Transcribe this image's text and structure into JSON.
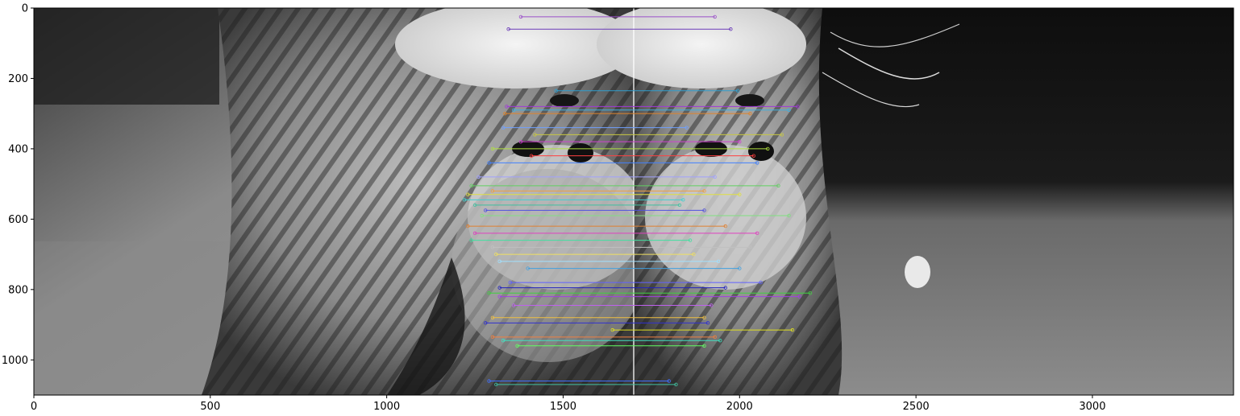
{
  "figure": {
    "description_key": "keypoint-matches",
    "image_extent": {
      "x": [
        0,
        3400
      ],
      "y": [
        0,
        1100
      ]
    },
    "seam_x": 1700,
    "x_ticks": [
      {
        "value": 0,
        "label": "0"
      },
      {
        "value": 500,
        "label": "500"
      },
      {
        "value": 1000,
        "label": "1000"
      },
      {
        "value": 1500,
        "label": "1500"
      },
      {
        "value": 2000,
        "label": "2000"
      },
      {
        "value": 2500,
        "label": "2500"
      },
      {
        "value": 3000,
        "label": "3000"
      }
    ],
    "y_ticks": [
      {
        "value": 0,
        "label": "0"
      },
      {
        "value": 200,
        "label": "200"
      },
      {
        "value": 400,
        "label": "400"
      },
      {
        "value": 600,
        "label": "600"
      },
      {
        "value": 800,
        "label": "800"
      },
      {
        "value": 1000,
        "label": "1000"
      }
    ]
  },
  "chart_data": {
    "type": "scatter",
    "title": "",
    "xlabel": "",
    "ylabel": "",
    "xlim": [
      0,
      3400
    ],
    "ylim": [
      1100,
      0
    ],
    "grid": false,
    "matches": [
      {
        "x1": 1380,
        "x2": 1930,
        "y": 25,
        "color": "#9a4fc9"
      },
      {
        "x1": 1345,
        "x2": 1975,
        "y": 60,
        "color": "#6a3ab8"
      },
      {
        "x1": 1480,
        "x2": 1995,
        "y": 235,
        "color": "#2f9fd0"
      },
      {
        "x1": 1340,
        "x2": 2165,
        "y": 280,
        "color": "#a038d8"
      },
      {
        "x1": 1360,
        "x2": 2140,
        "y": 290,
        "color": "#3fb0e0"
      },
      {
        "x1": 1335,
        "x2": 2030,
        "y": 300,
        "color": "#e0842a"
      },
      {
        "x1": 1330,
        "x2": 1850,
        "y": 340,
        "color": "#6fa0ff"
      },
      {
        "x1": 1420,
        "x2": 2120,
        "y": 360,
        "color": "#c8c840"
      },
      {
        "x1": 1380,
        "x2": 2000,
        "y": 380,
        "color": "#d040d0"
      },
      {
        "x1": 1300,
        "x2": 2080,
        "y": 400,
        "color": "#b0e040"
      },
      {
        "x1": 1410,
        "x2": 2040,
        "y": 420,
        "color": "#ff4040"
      },
      {
        "x1": 1290,
        "x2": 2050,
        "y": 440,
        "color": "#4080ff"
      },
      {
        "x1": 1260,
        "x2": 1930,
        "y": 480,
        "color": "#a0a0ff"
      },
      {
        "x1": 1240,
        "x2": 2110,
        "y": 505,
        "color": "#60d060"
      },
      {
        "x1": 1300,
        "x2": 1900,
        "y": 520,
        "color": "#f0a040"
      },
      {
        "x1": 1230,
        "x2": 2000,
        "y": 530,
        "color": "#e0e040"
      },
      {
        "x1": 1220,
        "x2": 1840,
        "y": 545,
        "color": "#40d0d0"
      },
      {
        "x1": 1250,
        "x2": 1830,
        "y": 560,
        "color": "#40c0a0"
      },
      {
        "x1": 1280,
        "x2": 1900,
        "y": 575,
        "color": "#5050e0"
      },
      {
        "x1": 1270,
        "x2": 2140,
        "y": 590,
        "color": "#80e080"
      },
      {
        "x1": 1230,
        "x2": 1960,
        "y": 620,
        "color": "#e08030"
      },
      {
        "x1": 1250,
        "x2": 2050,
        "y": 640,
        "color": "#e040c0"
      },
      {
        "x1": 1240,
        "x2": 1860,
        "y": 660,
        "color": "#40e0a0"
      },
      {
        "x1": 1300,
        "x2": 2030,
        "y": 680,
        "color": "#c0c0c0"
      },
      {
        "x1": 1310,
        "x2": 1870,
        "y": 700,
        "color": "#f0e060"
      },
      {
        "x1": 1320,
        "x2": 1940,
        "y": 720,
        "color": "#a0e0ff"
      },
      {
        "x1": 1400,
        "x2": 2000,
        "y": 740,
        "color": "#40a0e0"
      },
      {
        "x1": 1350,
        "x2": 2060,
        "y": 780,
        "color": "#6060ff"
      },
      {
        "x1": 1320,
        "x2": 1960,
        "y": 795,
        "color": "#2020c0"
      },
      {
        "x1": 1290,
        "x2": 2200,
        "y": 810,
        "color": "#40d040"
      },
      {
        "x1": 1320,
        "x2": 2170,
        "y": 820,
        "color": "#a040e0"
      },
      {
        "x1": 1360,
        "x2": 1920,
        "y": 845,
        "color": "#c060f0"
      },
      {
        "x1": 1300,
        "x2": 1900,
        "y": 880,
        "color": "#f0c040"
      },
      {
        "x1": 1280,
        "x2": 1910,
        "y": 895,
        "color": "#3030d0"
      },
      {
        "x1": 1640,
        "x2": 2150,
        "y": 915,
        "color": "#e0e020"
      },
      {
        "x1": 1300,
        "x2": 1930,
        "y": 935,
        "color": "#f08040"
      },
      {
        "x1": 1330,
        "x2": 1945,
        "y": 945,
        "color": "#40e0c0"
      },
      {
        "x1": 1370,
        "x2": 1900,
        "y": 960,
        "color": "#60ff60"
      },
      {
        "x1": 1290,
        "x2": 1800,
        "y": 1060,
        "color": "#4070ff"
      },
      {
        "x1": 1310,
        "x2": 1820,
        "y": 1070,
        "color": "#40c0a0"
      }
    ]
  },
  "colors": {
    "axis": "#000000",
    "background": "#ffffff",
    "fur_light": "#e8e8e8",
    "fur_dark": "#1a1a1a",
    "backdrop_dark": "#111111",
    "backdrop_mid": "#777777"
  }
}
